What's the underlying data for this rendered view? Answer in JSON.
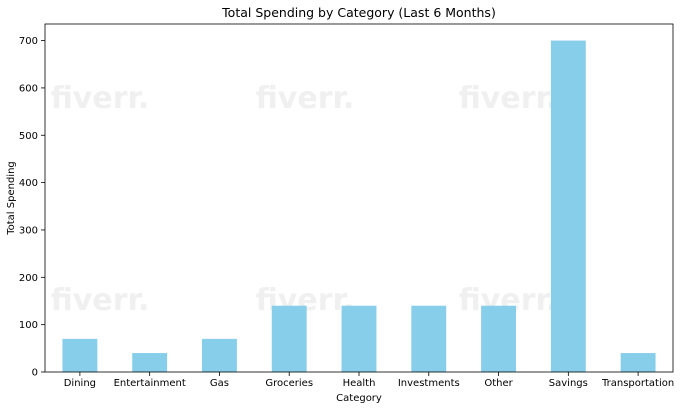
{
  "chart_data": {
    "type": "bar",
    "title": "Total Spending by Category (Last 6 Months)",
    "xlabel": "Category",
    "ylabel": "Total Spending",
    "categories": [
      "Dining",
      "Entertainment",
      "Gas",
      "Groceries",
      "Health",
      "Investments",
      "Other",
      "Savings",
      "Transportation"
    ],
    "values": [
      70,
      40,
      70,
      140,
      140,
      140,
      140,
      700,
      40
    ],
    "ylim": [
      0,
      735
    ],
    "yticks": [
      0,
      100,
      200,
      300,
      400,
      500,
      600,
      700
    ],
    "bar_color": "#87ceeb",
    "grid": false,
    "legend": "none"
  },
  "watermark": {
    "text": "fiverr.",
    "color": "#f0f0f0"
  }
}
